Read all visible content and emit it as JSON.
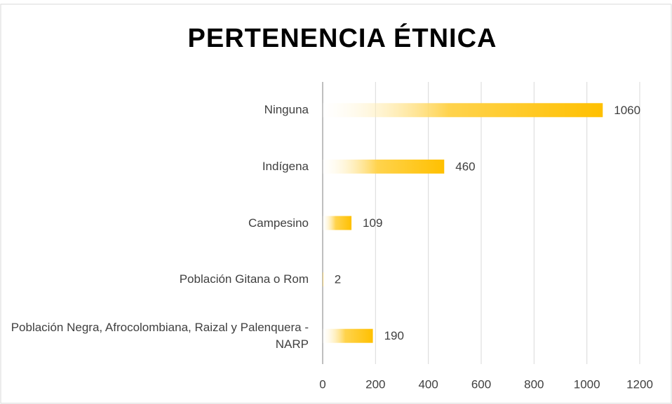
{
  "chart_data": {
    "type": "bar",
    "orientation": "horizontal",
    "title": "PERTENENCIA ÉTNICA",
    "categories": [
      "Ninguna",
      "Indígena",
      "Campesino",
      "Población Gitana o Rom",
      "Población Negra, Afrocolombiana, Raizal y Palenquera - NARP"
    ],
    "values": [
      1060,
      460,
      109,
      2,
      190
    ],
    "color": "#ffc000",
    "xlim": [
      0,
      1200
    ],
    "xticks": [
      0,
      200,
      400,
      600,
      800,
      1000,
      1200
    ],
    "grid": true
  }
}
